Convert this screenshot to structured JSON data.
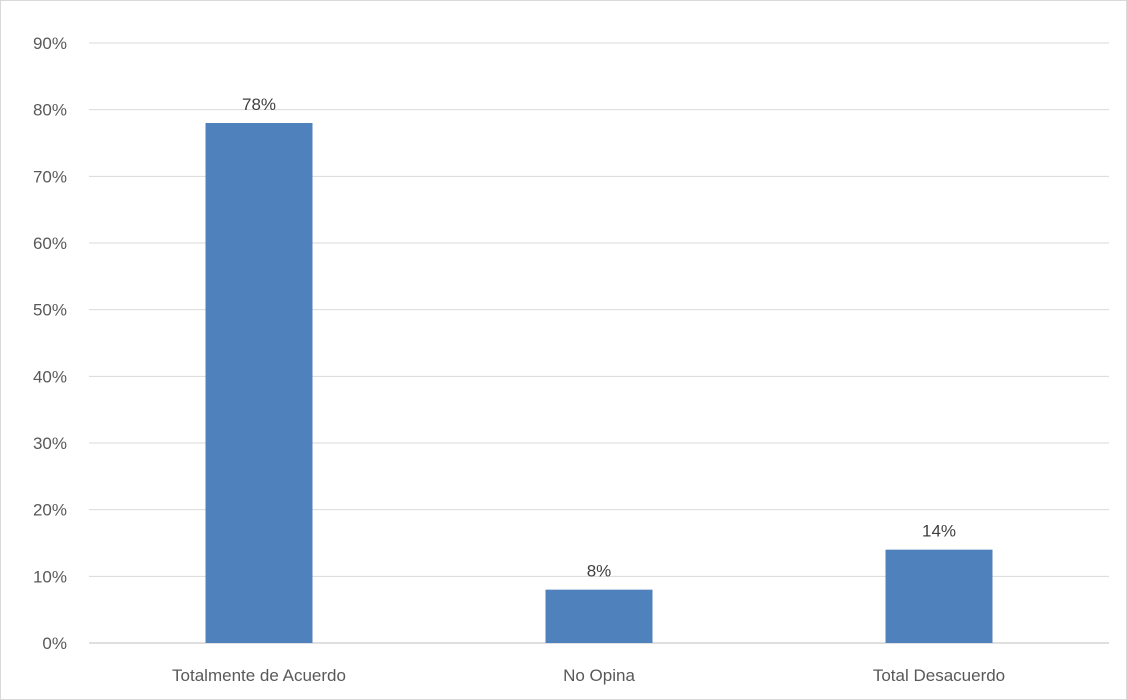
{
  "chart_data": {
    "type": "bar",
    "categories": [
      "Totalmente de Acuerdo",
      "No Opina",
      "Total Desacuerdo"
    ],
    "values": [
      78,
      8,
      14
    ],
    "data_labels": [
      "78%",
      "8%",
      "14%"
    ],
    "ylim": [
      0,
      90
    ],
    "y_ticks": [
      0,
      10,
      20,
      30,
      40,
      50,
      60,
      70,
      80,
      90
    ],
    "y_tick_labels": [
      "0%",
      "10%",
      "20%",
      "30%",
      "40%",
      "50%",
      "60%",
      "70%",
      "80%",
      "90%"
    ],
    "grid": true,
    "legend": "none",
    "colors": {
      "bar": "#4f81bd",
      "grid": "#d9d9d9",
      "axis": "#bfbfbf"
    }
  }
}
